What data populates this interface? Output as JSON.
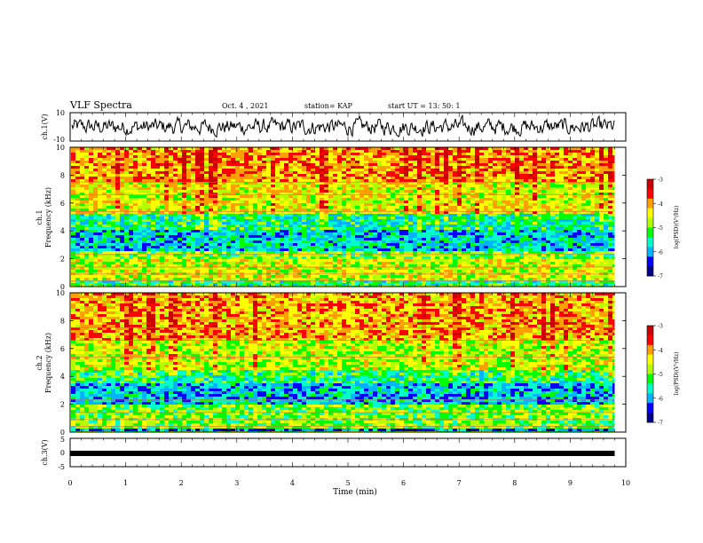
{
  "header": {
    "title": "VLF Spectra",
    "date": "Oct. 4 , 2021",
    "station": "station= KAP",
    "start": "start  UT  =   13: 50: 1"
  },
  "chart_data": [
    {
      "type": "line",
      "panel": "ch1-waveform",
      "ylabel": "ch.1(V)",
      "ylim": [
        -10,
        10
      ],
      "yticks": [
        "10",
        "-10"
      ],
      "description_level": "noisy waveform around 0 V, excursions to about ±7 V"
    },
    {
      "type": "heatmap",
      "panel": "ch1-spectrogram",
      "ylabel": "ch.1\nFrequency (kHz)",
      "ylabel_lines": [
        "ch.1",
        "Frequency (kHz)"
      ],
      "ylim": [
        0,
        10
      ],
      "yticks": [
        "0",
        "2",
        "4",
        "6",
        "8",
        "10"
      ],
      "colorbar": {
        "label": "log(PSD)(V²/Hz)",
        "ticks": [
          "-3",
          "-4",
          "-5",
          "-6",
          "-7"
        ],
        "range": [
          -7,
          -3
        ]
      },
      "bands_khz": [
        {
          "from": 0,
          "to": 0.4,
          "level": -5.3
        },
        {
          "from": 0.4,
          "to": 2.0,
          "level": -4.6
        },
        {
          "from": 2.0,
          "to": 2.6,
          "level": -5.0
        },
        {
          "from": 2.6,
          "to": 4.0,
          "level": -5.8
        },
        {
          "from": 4.0,
          "to": 5.2,
          "level": -5.5
        },
        {
          "from": 5.2,
          "to": 7.5,
          "level": -4.5
        },
        {
          "from": 7.5,
          "to": 10.0,
          "level": -4.0
        }
      ]
    },
    {
      "type": "heatmap",
      "panel": "ch2-spectrogram",
      "ylabel_lines": [
        "ch.2",
        "Frequency (kHz)"
      ],
      "ylim": [
        0,
        10
      ],
      "yticks": [
        "0",
        "2",
        "4",
        "6",
        "8",
        "10"
      ],
      "colorbar": {
        "label": "log(PSD)(V²/Hz)",
        "ticks": [
          "-3",
          "-4",
          "-5",
          "-6",
          "-7"
        ],
        "range": [
          -7,
          -3
        ]
      },
      "bands_khz": [
        {
          "from": 0,
          "to": 0.3,
          "level": -6.2
        },
        {
          "from": 0.3,
          "to": 2.0,
          "level": -5.0
        },
        {
          "from": 2.0,
          "to": 3.5,
          "level": -5.9
        },
        {
          "from": 3.5,
          "to": 4.5,
          "level": -5.3
        },
        {
          "from": 4.5,
          "to": 6.5,
          "level": -4.7
        },
        {
          "from": 6.5,
          "to": 10.0,
          "level": -4.1
        }
      ]
    },
    {
      "type": "line",
      "panel": "ch3-waveform",
      "ylabel": "ch.3(V)",
      "ylim": [
        -5,
        5
      ],
      "yticks": [
        "5",
        "0",
        "-5"
      ],
      "level_v": 0
    }
  ],
  "xaxis": {
    "label": "Time (min)",
    "range": [
      0,
      10
    ],
    "ticks": [
      "0",
      "1",
      "2",
      "3",
      "4",
      "5",
      "6",
      "7",
      "8",
      "9",
      "10"
    ],
    "data_end_min": 9.8
  },
  "colors": {
    "colormap": [
      "#00008b",
      "#0000ff",
      "#00b4ff",
      "#00ffc8",
      "#00ff00",
      "#b4ff00",
      "#ffff00",
      "#ffa000",
      "#ff0000",
      "#c80000"
    ]
  }
}
